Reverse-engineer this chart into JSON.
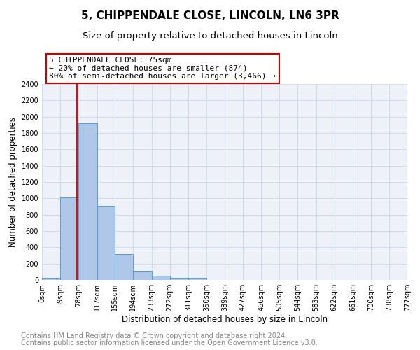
{
  "title1": "5, CHIPPENDALE CLOSE, LINCOLN, LN6 3PR",
  "title2": "Size of property relative to detached houses in Lincoln",
  "xlabel": "Distribution of detached houses by size in Lincoln",
  "ylabel": "Number of detached properties",
  "bar_edges": [
    0,
    39,
    78,
    117,
    155,
    194,
    233,
    272,
    311,
    350,
    389,
    427,
    466,
    505,
    544,
    583,
    622,
    661,
    700,
    738,
    777
  ],
  "bar_heights": [
    25,
    1010,
    1920,
    910,
    320,
    110,
    50,
    30,
    25,
    0,
    0,
    0,
    0,
    0,
    0,
    0,
    0,
    0,
    0,
    0
  ],
  "bar_color": "#aec6e8",
  "bar_edge_color": "#5a9fd4",
  "red_line_x": 75,
  "annotation_line1": "5 CHIPPENDALE CLOSE: 75sqm",
  "annotation_line2": "← 20% of detached houses are smaller (874)",
  "annotation_line3": "80% of semi-detached houses are larger (3,466) →",
  "annotation_box_color": "#ffffff",
  "annotation_box_edge_color": "#cc0000",
  "ylim": [
    0,
    2400
  ],
  "yticks": [
    0,
    200,
    400,
    600,
    800,
    1000,
    1200,
    1400,
    1600,
    1800,
    2000,
    2200,
    2400
  ],
  "tick_labels": [
    "0sqm",
    "39sqm",
    "78sqm",
    "117sqm",
    "155sqm",
    "194sqm",
    "233sqm",
    "272sqm",
    "311sqm",
    "350sqm",
    "389sqm",
    "427sqm",
    "466sqm",
    "505sqm",
    "544sqm",
    "583sqm",
    "622sqm",
    "661sqm",
    "700sqm",
    "738sqm",
    "777sqm"
  ],
  "footer1": "Contains HM Land Registry data © Crown copyright and database right 2024.",
  "footer2": "Contains public sector information licensed under the Open Government Licence v3.0.",
  "grid_color": "#d0ddf0",
  "bg_color": "#eef2f8",
  "title1_fontsize": 11,
  "title2_fontsize": 9.5,
  "xlabel_fontsize": 8.5,
  "ylabel_fontsize": 8.5,
  "tick_fontsize": 7,
  "footer_fontsize": 7
}
